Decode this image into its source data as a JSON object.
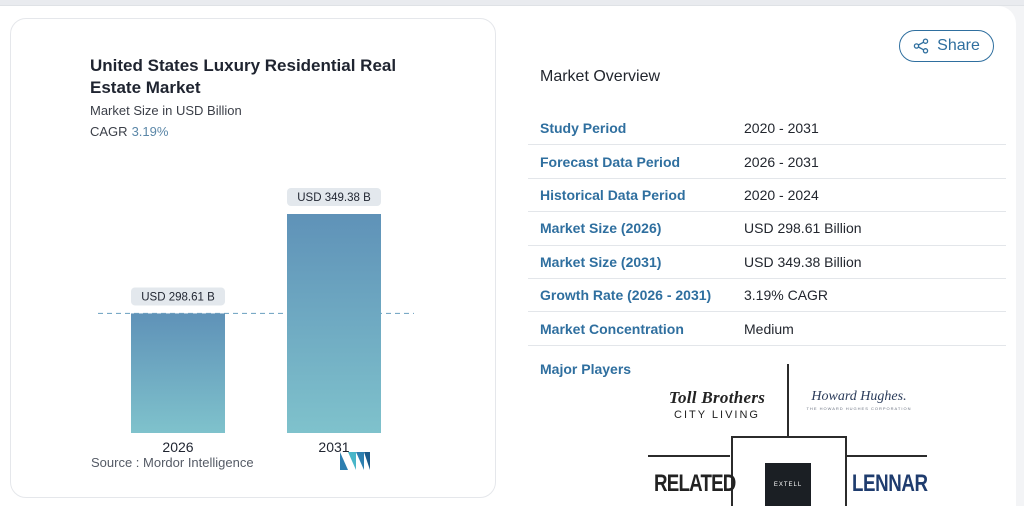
{
  "chart_card": {
    "title": "United States Luxury Residential Real Estate Market",
    "subtitle": "Market Size in USD Billion",
    "cagr_label": "CAGR",
    "cagr_value": "3.19%",
    "source": "Source : Mordor Intelligence",
    "logo_icon": "mordor-logo-icon"
  },
  "chart_data": {
    "type": "bar",
    "categories": [
      "2026",
      "2031"
    ],
    "values": [
      298.61,
      349.38
    ],
    "data_labels": [
      "USD 298.61 B",
      "USD 349.38 B"
    ],
    "title": "United States Luxury Residential Real Estate Market",
    "ylabel": "Market Size in USD Billion",
    "grid": false,
    "reference_line_value": 298.61,
    "colors": {
      "bar_top": "#5f92b8",
      "bar_bottom": "#7fc2cc",
      "reference_line": "#7aaac6"
    }
  },
  "share": {
    "label": "Share",
    "icon": "share-icon",
    "color": "#2f6f9f"
  },
  "overview": {
    "title": "Market Overview",
    "rows": [
      {
        "label": "Study Period",
        "value": "2020 - 2031"
      },
      {
        "label": "Forecast Data Period",
        "value": "2026 - 2031"
      },
      {
        "label": "Historical Data Period",
        "value": "2020 - 2024"
      },
      {
        "label": "Market Size (2026)",
        "value": "USD 298.61 Billion"
      },
      {
        "label": "Market Size (2031)",
        "value": "USD 349.38 Billion"
      },
      {
        "label": "Growth Rate (2026 - 2031)",
        "value": "3.19% CAGR"
      },
      {
        "label": "Market Concentration",
        "value": "Medium"
      }
    ]
  },
  "players": {
    "label": "Major Players",
    "toll_brothers": {
      "line1": "Toll Brothers",
      "line2": "CITY LIVING"
    },
    "howard_hughes": {
      "line1": "Howard Hughes.",
      "line2": "THE HOWARD HUGHES CORPORATION"
    },
    "related": "RELATED",
    "extell": "EXTELL",
    "lennar": "LENNAR"
  }
}
